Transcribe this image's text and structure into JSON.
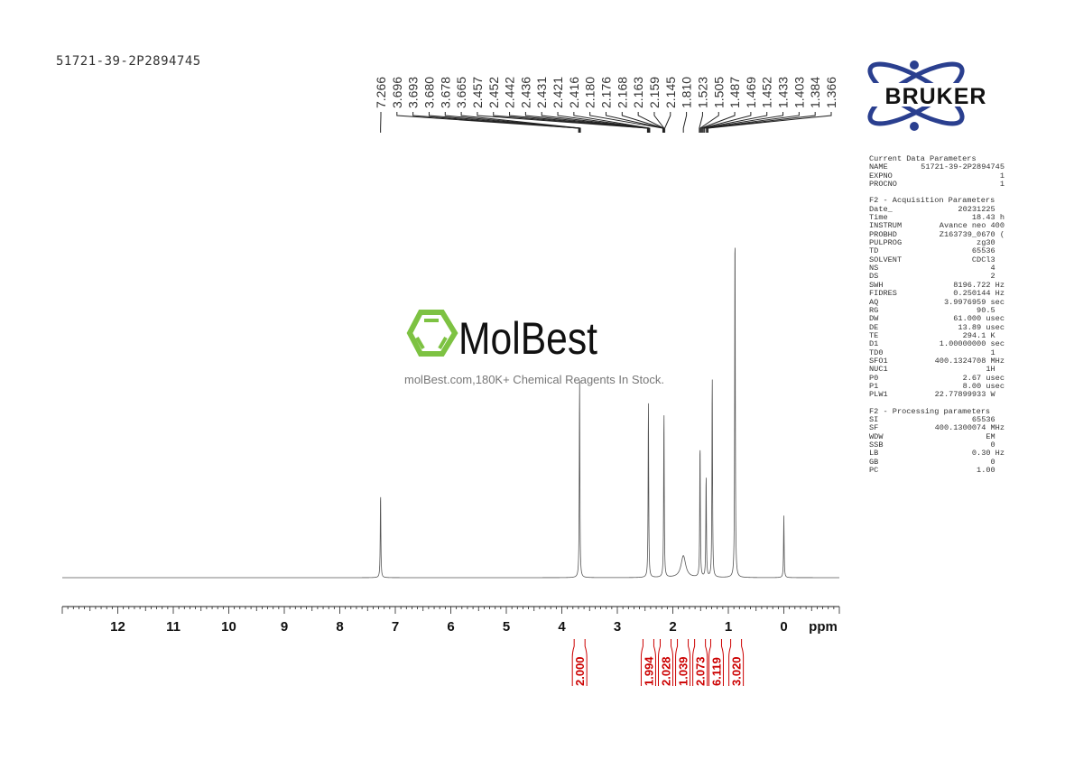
{
  "sample_name": "51721-39-2P2894745",
  "logos": {
    "bruker": "BRUKER",
    "molbest": "MolBest",
    "molbest_tagline": "molBest.com,180K+ Chemical Reagents In Stock."
  },
  "colors": {
    "spectrum": "#555555",
    "integral": "#cc0000",
    "molbest_green": "#7dc242",
    "bruker_blue": "#2a3f8f"
  },
  "parameters": {
    "sections": [
      {
        "title": "Current Data Parameters",
        "rows": [
          [
            "NAME",
            "51721-39-2P2894745"
          ],
          [
            "EXPNO",
            "1"
          ],
          [
            "PROCNO",
            "1"
          ]
        ]
      },
      {
        "title": "F2 - Acquisition Parameters",
        "rows": [
          [
            "Date_",
            "20231225  "
          ],
          [
            "Time",
            "18.43 h"
          ],
          [
            "INSTRUM",
            "Avance neo 400"
          ],
          [
            "PROBHD",
            "Z163739_0670 ("
          ],
          [
            "PULPROG",
            "zg30  "
          ],
          [
            "TD",
            "65536  "
          ],
          [
            "SOLVENT",
            "CDCl3  "
          ],
          [
            "NS",
            "4  "
          ],
          [
            "DS",
            "2  "
          ],
          [
            "SWH",
            "8196.722 Hz"
          ],
          [
            "FIDRES",
            "0.250144 Hz"
          ],
          [
            "AQ",
            "3.9976959 sec"
          ],
          [
            "RG",
            "90.5  "
          ],
          [
            "DW",
            "61.000 usec"
          ],
          [
            "DE",
            "13.89 usec"
          ],
          [
            "TE",
            "294.1 K  "
          ],
          [
            "D1",
            "1.00000000 sec"
          ],
          [
            "TD0",
            "1  "
          ],
          [
            "SFO1",
            "400.1324708 MHz"
          ],
          [
            "NUC1",
            "1H  "
          ],
          [
            "P0",
            "2.67 usec"
          ],
          [
            "P1",
            "8.00 usec"
          ],
          [
            "PLW1",
            "22.77899933 W  "
          ]
        ]
      },
      {
        "title": "F2 - Processing parameters",
        "rows": [
          [
            "SI",
            "65536  "
          ],
          [
            "SF",
            "400.1300074 MHz"
          ],
          [
            "WDW",
            "EM  "
          ],
          [
            "SSB",
            "0  "
          ],
          [
            "LB",
            "0.30 Hz"
          ],
          [
            "GB",
            "0  "
          ],
          [
            "PC",
            "1.00  "
          ]
        ]
      }
    ]
  },
  "chart_data": {
    "type": "line",
    "xlabel": "ppm",
    "xlim": [
      13.0,
      -1.0
    ],
    "x_reversed": true,
    "x_ticks": [
      12,
      11,
      10,
      9,
      8,
      7,
      6,
      5,
      4,
      3,
      2,
      1,
      0
    ],
    "grid": false,
    "peak_labels": [
      "7.266",
      "3.696",
      "3.693",
      "3.680",
      "3.678",
      "3.665",
      "2.457",
      "2.452",
      "2.442",
      "2.436",
      "2.431",
      "2.421",
      "2.416",
      "2.180",
      "2.176",
      "2.168",
      "2.163",
      "2.159",
      "2.145",
      "1.810",
      "1.523",
      "1.505",
      "1.487",
      "1.469",
      "1.452",
      "1.433",
      "1.403",
      "1.384",
      "1.366"
    ],
    "peaks_relative_intensity": [
      {
        "ppm": 7.266,
        "intensity": 24
      },
      {
        "ppm": 3.68,
        "intensity": 56
      },
      {
        "ppm": 2.44,
        "intensity": 49
      },
      {
        "ppm": 2.16,
        "intensity": 47
      },
      {
        "ppm": 1.81,
        "intensity": 6
      },
      {
        "ppm": 1.51,
        "intensity": 38
      },
      {
        "ppm": 1.4,
        "intensity": 29
      },
      {
        "ppm": 1.29,
        "intensity": 57
      },
      {
        "ppm": 0.88,
        "intensity": 100
      },
      {
        "ppm": 0.0,
        "intensity": 17
      }
    ],
    "integrals": [
      {
        "ppm": 3.68,
        "value": "2.000"
      },
      {
        "ppm": 2.44,
        "value": "1.994"
      },
      {
        "ppm": 2.13,
        "value": "2.028"
      },
      {
        "ppm": 1.82,
        "value": "1.039"
      },
      {
        "ppm": 1.51,
        "value": "2.073"
      },
      {
        "ppm": 1.22,
        "value": "6.119"
      },
      {
        "ppm": 0.86,
        "value": "3.020"
      }
    ]
  }
}
